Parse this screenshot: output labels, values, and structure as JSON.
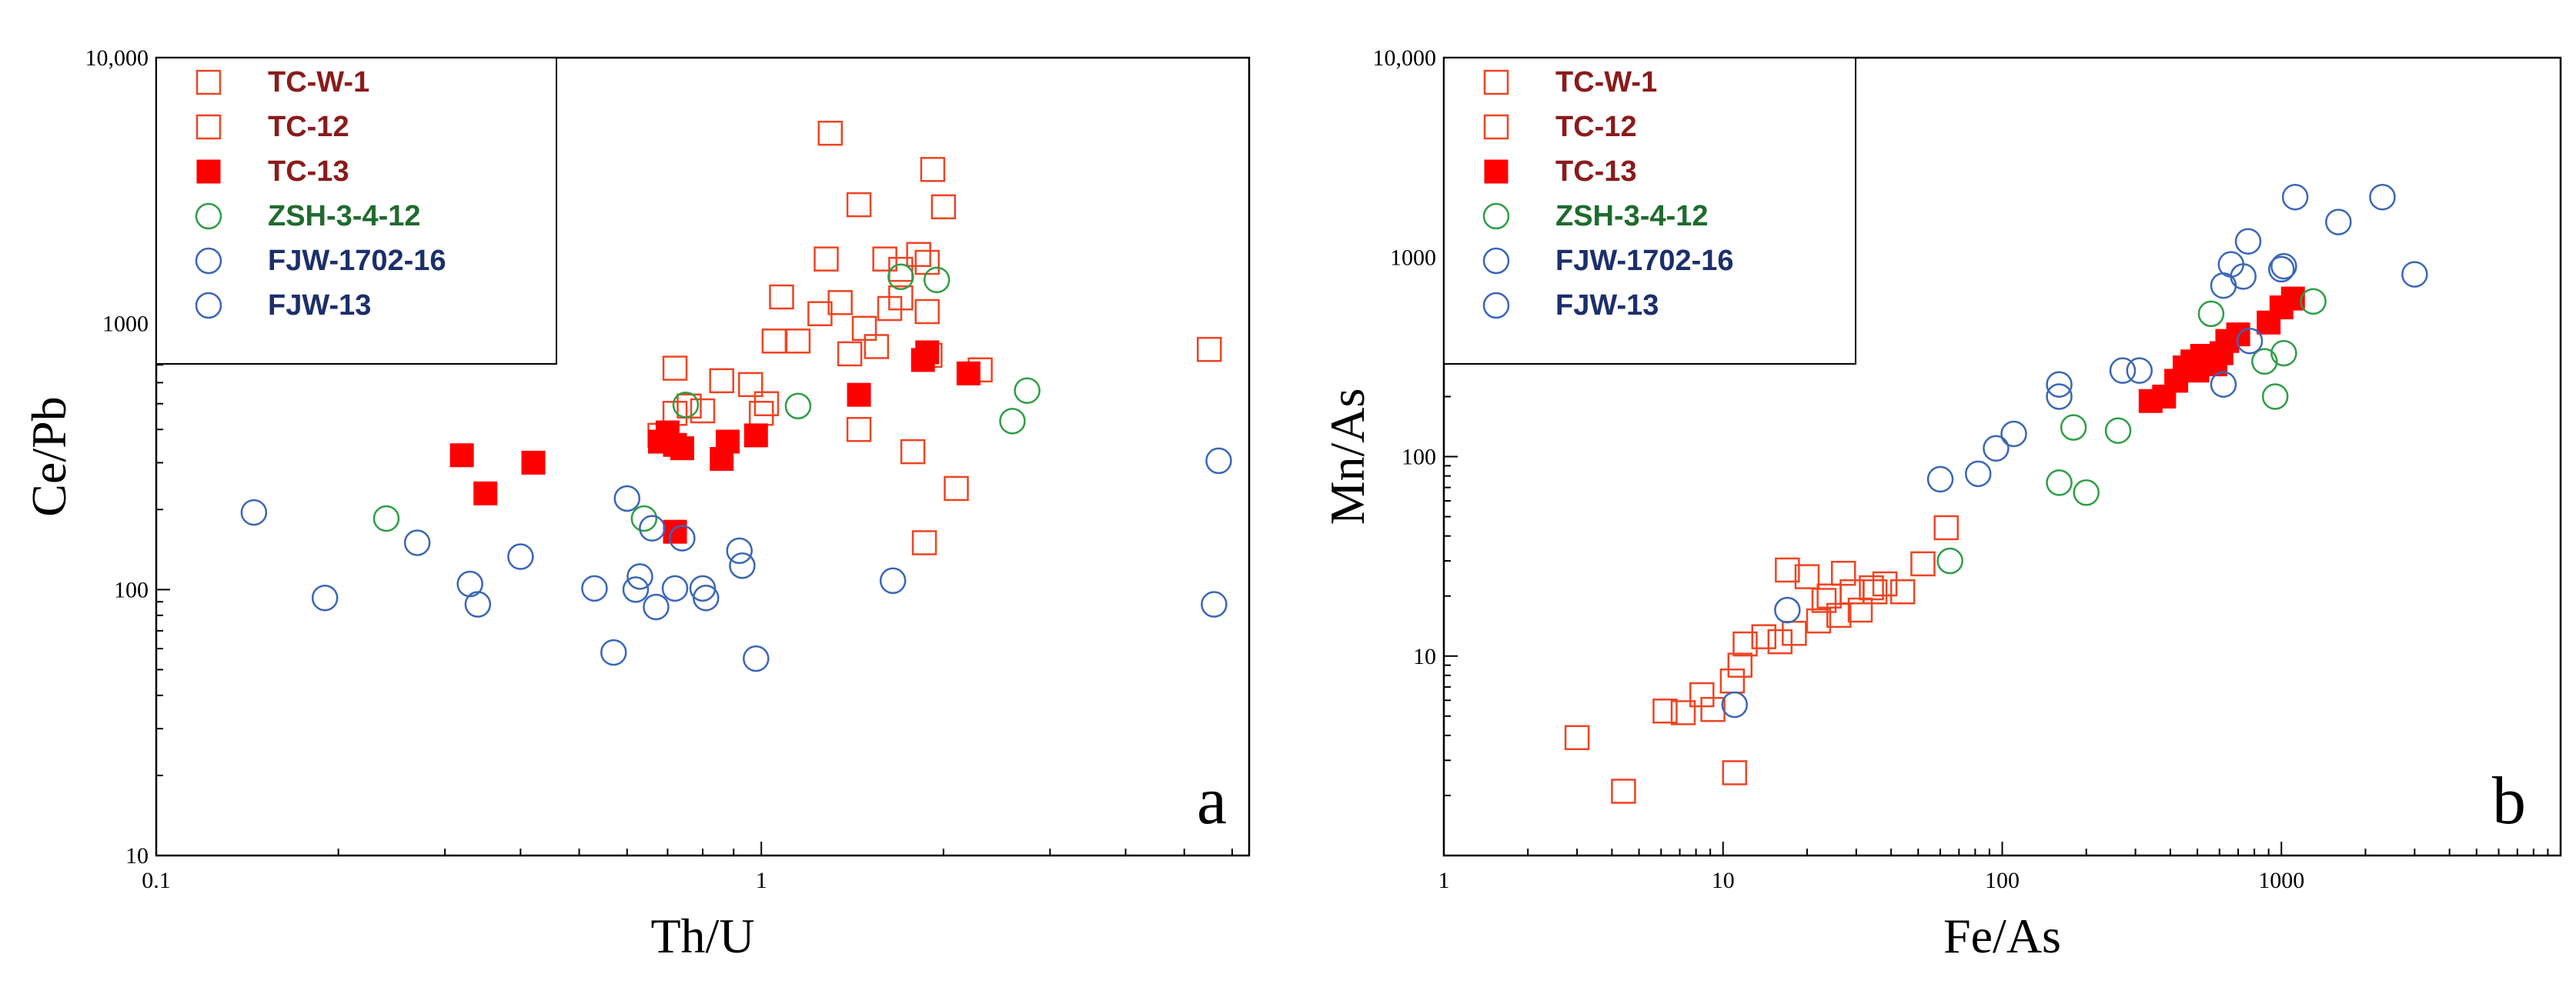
{
  "chart_data": [
    {
      "type": "scatter",
      "panel_label": "a",
      "xlabel": "Th/U",
      "ylabel": "Ce/Pb",
      "xscale": "log",
      "yscale": "log",
      "xlim": [
        0.1,
        6.4
      ],
      "ylim": [
        10,
        10000
      ],
      "xticks": [
        {
          "v": 0.1,
          "label": "0.1"
        },
        {
          "v": 1,
          "label": "1"
        }
      ],
      "yticks": [
        {
          "v": 10,
          "label": "10"
        },
        {
          "v": 100,
          "label": "100"
        },
        {
          "v": 1000,
          "label": "1000"
        },
        {
          "v": 10000,
          "label": "10,000"
        }
      ],
      "legend_position": "top-left",
      "series": [
        {
          "name": "TC-W-1",
          "marker": "square-open",
          "color": "#ee4422",
          "text_color": "#8b1a1a",
          "points": [
            [
              0.72,
              680
            ],
            [
              0.68,
              380
            ],
            [
              0.8,
              470
            ],
            [
              0.86,
              610
            ],
            [
              0.96,
              590
            ],
            [
              1.0,
              460
            ],
            [
              1.02,
              500
            ],
            [
              1.08,
              1260
            ],
            [
              1.15,
              860
            ],
            [
              1.25,
              1090
            ],
            [
              1.28,
              1750
            ],
            [
              1.35,
              1200
            ],
            [
              1.4,
              770
            ],
            [
              1.45,
              400
            ],
            [
              1.48,
              960
            ],
            [
              1.55,
              820
            ],
            [
              1.6,
              1750
            ],
            [
              1.63,
              1140
            ],
            [
              1.7,
              1250
            ],
            [
              1.78,
              330
            ],
            [
              1.82,
              1820
            ],
            [
              1.86,
              150
            ],
            [
              1.88,
              1110
            ],
            [
              1.9,
              760
            ],
            [
              2.0,
              2750
            ],
            [
              2.1,
              240
            ],
            [
              2.3,
              670
            ],
            [
              5.5,
              800
            ]
          ]
        },
        {
          "name": "TC-12",
          "marker": "square-open",
          "color": "#ee4422",
          "text_color": "#8b1a1a",
          "points": [
            [
              0.72,
              460
            ],
            [
              0.76,
              490
            ],
            [
              1.05,
              860
            ],
            [
              1.3,
              5200
            ],
            [
              1.45,
              2800
            ],
            [
              1.7,
              1600
            ],
            [
              1.88,
              1700
            ],
            [
              1.92,
              3800
            ]
          ]
        },
        {
          "name": "TC-13",
          "marker": "square-filled",
          "color": "#ff0000",
          "text_color": "#8b1a1a",
          "points": [
            [
              0.32,
              320
            ],
            [
              0.35,
              230
            ],
            [
              0.42,
              300
            ],
            [
              0.68,
              360
            ],
            [
              0.7,
              390
            ],
            [
              0.72,
              350
            ],
            [
              0.74,
              340
            ],
            [
              0.72,
              165
            ],
            [
              0.86,
              310
            ],
            [
              0.88,
              360
            ],
            [
              0.98,
              380
            ],
            [
              1.45,
              540
            ],
            [
              1.85,
              730
            ],
            [
              1.88,
              780
            ],
            [
              2.2,
              650
            ]
          ]
        },
        {
          "name": "ZSH-3-4-12",
          "marker": "circle-open",
          "color": "#2e9e44",
          "text_color": "#1f6b2e",
          "points": [
            [
              0.24,
              185
            ],
            [
              0.64,
              185
            ],
            [
              0.75,
              495
            ],
            [
              1.15,
              490
            ],
            [
              1.7,
              1500
            ],
            [
              1.95,
              1460
            ],
            [
              2.6,
              430
            ],
            [
              2.75,
              560
            ]
          ]
        },
        {
          "name": "FJW-1702-16",
          "marker": "circle-open",
          "color": "#3a66b8",
          "text_color": "#1c2f6b",
          "points": [
            [
              0.145,
              195
            ],
            [
              0.19,
              93
            ],
            [
              0.27,
              150
            ],
            [
              0.33,
              105
            ],
            [
              0.34,
              88
            ],
            [
              0.4,
              133
            ],
            [
              0.53,
              101
            ],
            [
              0.57,
              58
            ],
            [
              0.6,
              220
            ],
            [
              0.62,
              100
            ],
            [
              0.63,
              112
            ],
            [
              0.66,
              170
            ],
            [
              0.67,
              86
            ],
            [
              0.72,
              101
            ],
            [
              0.74,
              156
            ],
            [
              0.8,
              101
            ],
            [
              0.81,
              93
            ],
            [
              0.92,
              140
            ],
            [
              0.93,
              123
            ],
            [
              0.98,
              55
            ],
            [
              1.65,
              108
            ],
            [
              5.7,
              305
            ],
            [
              5.6,
              88
            ]
          ]
        },
        {
          "name": "FJW-13",
          "marker": "circle-open",
          "color": "#3a66b8",
          "text_color": "#1c2f6b",
          "points": []
        }
      ]
    },
    {
      "type": "scatter",
      "panel_label": "b",
      "xlabel": "Fe/As",
      "ylabel": "Mn/As",
      "xscale": "log",
      "yscale": "log",
      "xlim": [
        1,
        10000
      ],
      "ylim": [
        1,
        10000
      ],
      "xticks": [
        {
          "v": 1,
          "label": "1"
        },
        {
          "v": 10,
          "label": "10"
        },
        {
          "v": 100,
          "label": "100"
        },
        {
          "v": 1000,
          "label": "1000"
        }
      ],
      "yticks": [
        {
          "v": 10,
          "label": "10"
        },
        {
          "v": 100,
          "label": "100"
        },
        {
          "v": 1000,
          "label": "1000"
        },
        {
          "v": 10000,
          "label": "10,000"
        }
      ],
      "legend_position": "top-left",
      "series": [
        {
          "name": "TC-W-1",
          "marker": "square-open",
          "color": "#ee4422",
          "text_color": "#8b1a1a",
          "points": [
            [
              3.0,
              3.9
            ],
            [
              4.4,
              2.1
            ],
            [
              6.2,
              5.3
            ],
            [
              7.2,
              5.2
            ],
            [
              8.4,
              6.4
            ],
            [
              9.2,
              5.4
            ],
            [
              10.8,
              7.5
            ],
            [
              11.5,
              9.0
            ],
            [
              11.0,
              2.6
            ],
            [
              12.0,
              11.5
            ],
            [
              14.0,
              12.5
            ],
            [
              16.0,
              11.8
            ],
            [
              18.0,
              13.0
            ],
            [
              17.0,
              27.0
            ],
            [
              20.0,
              25.0
            ],
            [
              22.0,
              15.0
            ],
            [
              23.0,
              19.0
            ],
            [
              24.0,
              20.0
            ],
            [
              26.0,
              16.0
            ],
            [
              27.0,
              26.0
            ],
            [
              29.0,
              21.0
            ],
            [
              31.0,
              17.0
            ],
            [
              34.0,
              22.0
            ],
            [
              35.0,
              21.0
            ],
            [
              38.0,
              23.0
            ],
            [
              44.0,
              21.0
            ],
            [
              52.0,
              29.0
            ],
            [
              63.0,
              44.0
            ]
          ]
        },
        {
          "name": "TC-12",
          "marker": "square-open",
          "color": "#ee4422",
          "text_color": "#8b1a1a",
          "points": []
        },
        {
          "name": "TC-13",
          "marker": "square-filled",
          "color": "#ff0000",
          "text_color": "#8b1a1a",
          "points": [
            [
              340,
              190
            ],
            [
              380,
              200
            ],
            [
              420,
              240
            ],
            [
              450,
              280
            ],
            [
              480,
              300
            ],
            [
              500,
              270
            ],
            [
              520,
              320
            ],
            [
              550,
              310
            ],
            [
              580,
              290
            ],
            [
              610,
              330
            ],
            [
              640,
              380
            ],
            [
              700,
              410
            ],
            [
              900,
              470
            ],
            [
              1000,
              560
            ],
            [
              1100,
              620
            ]
          ]
        },
        {
          "name": "ZSH-3-4-12",
          "marker": "circle-open",
          "color": "#2e9e44",
          "text_color": "#1f6b2e",
          "points": [
            [
              65,
              30
            ],
            [
              160,
              74
            ],
            [
              180,
              140
            ],
            [
              200,
              66
            ],
            [
              260,
              135
            ],
            [
              560,
              520
            ],
            [
              870,
              300
            ],
            [
              950,
              200
            ],
            [
              1020,
              330
            ],
            [
              1300,
              600
            ]
          ]
        },
        {
          "name": "FJW-1702-16",
          "marker": "circle-open",
          "color": "#3a66b8",
          "text_color": "#1c2f6b",
          "points": [
            [
              11,
              5.7
            ],
            [
              17,
              17
            ],
            [
              60,
              77
            ],
            [
              82,
              82
            ],
            [
              95,
              110
            ],
            [
              110,
              130
            ],
            [
              160,
              200
            ],
            [
              160,
              230
            ],
            [
              270,
              270
            ],
            [
              310,
              270
            ],
            [
              620,
              230
            ],
            [
              620,
              720
            ],
            [
              660,
              920
            ],
            [
              730,
              800
            ],
            [
              760,
              1200
            ],
            [
              770,
              380
            ],
            [
              1000,
              870
            ],
            [
              1020,
              900
            ],
            [
              1120,
              2000
            ],
            [
              1600,
              1500
            ],
            [
              2300,
              2000
            ],
            [
              3000,
              820
            ]
          ]
        },
        {
          "name": "FJW-13",
          "marker": "circle-open",
          "color": "#3a66b8",
          "text_color": "#1c2f6b",
          "points": []
        }
      ]
    }
  ]
}
